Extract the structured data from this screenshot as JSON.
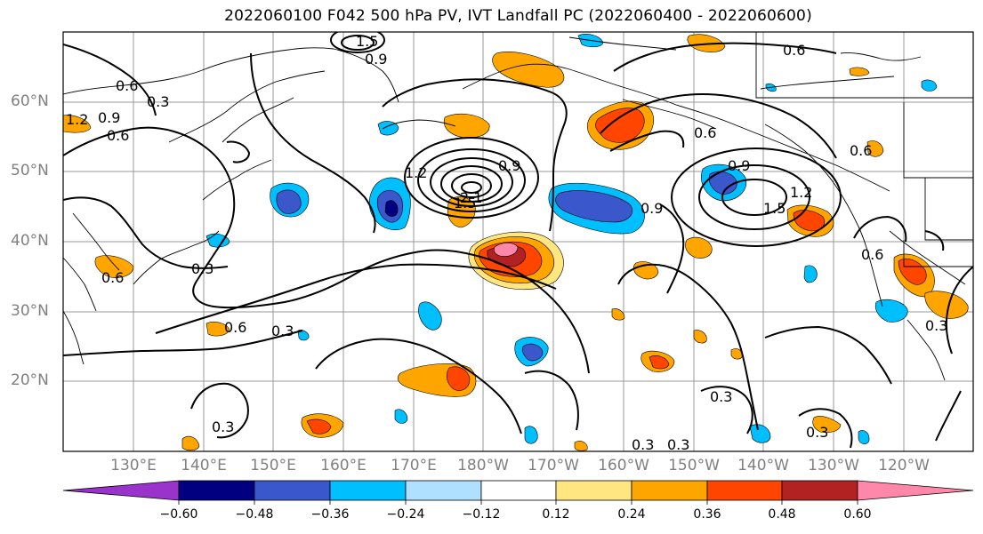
{
  "title": "2022060100 F042 500 hPa PV, IVT Landfall PC (2022060400 - 2022060600)",
  "map": {
    "lat_labels": [
      "60°N",
      "50°N",
      "40°N",
      "30°N",
      "20°N"
    ],
    "lon_labels": [
      "130°E",
      "140°E",
      "150°E",
      "160°E",
      "170°E",
      "180°W",
      "170°W",
      "160°W",
      "150°W",
      "140°W",
      "130°W",
      "120°W"
    ],
    "contour_labels": [
      "0.6",
      "0.3",
      "1.2",
      "0.9",
      "0.6",
      "1.5",
      "0.9",
      "0.6",
      "1.2",
      "0.9",
      "2.1",
      "0.9",
      "1.5",
      "0.6",
      "0.6",
      "0.9",
      "1.5",
      "1.2",
      "0.6",
      "0.6",
      "0.3",
      "0.3",
      "0.6",
      "0.3",
      "0.3",
      "0.3",
      "0.3",
      "0.3",
      "0.3"
    ]
  },
  "colorbar": {
    "tick_labels": [
      "−0.60",
      "−0.48",
      "−0.36",
      "−0.24",
      "−0.12",
      "0.12",
      "0.24",
      "0.36",
      "0.48",
      "0.60"
    ],
    "colors": [
      "#9933cc",
      "#000080",
      "#3a57cc",
      "#00bfff",
      "#b0e0ff",
      "#ffffff",
      "#ffe680",
      "#ffa500",
      "#ff4500",
      "#b22222",
      "#ff88aa"
    ]
  }
}
